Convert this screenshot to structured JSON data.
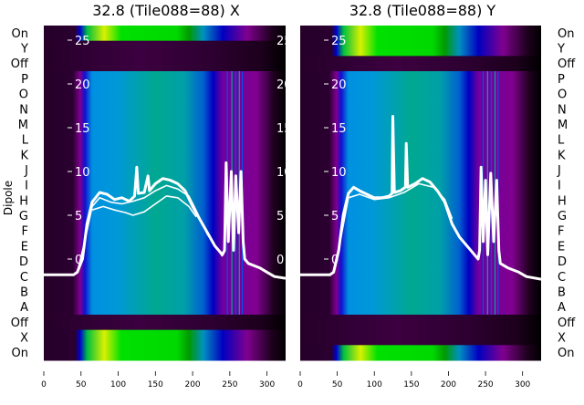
{
  "chart_data": [
    {
      "type": "heatmap",
      "title": "32.8 (Tile088=88) X",
      "ylabel": "Dipole",
      "row_labels": [
        "On",
        "Y",
        "Off",
        "P",
        "O",
        "N",
        "M",
        "L",
        "K",
        "J",
        "I",
        "H",
        "G",
        "F",
        "E",
        "D",
        "C",
        "B",
        "A",
        "Off",
        "X",
        "On"
      ],
      "row_types": [
        "on",
        "off",
        "off",
        "dip",
        "dip",
        "dip",
        "dip",
        "dip",
        "dip",
        "dip",
        "dip",
        "dip",
        "dip",
        "dip",
        "dip",
        "dip",
        "dip",
        "dip",
        "dip",
        "off",
        "on",
        "on"
      ],
      "x_range": [
        0,
        325
      ],
      "x_ticks": [
        "0",
        "50",
        "100",
        "150",
        "200",
        "250",
        "300"
      ],
      "y2_range": [
        -5,
        27
      ],
      "y2_ticks": [
        "0",
        "5",
        "10",
        "15",
        "20",
        "25"
      ],
      "lines": [
        [
          [
            0,
            -1.8
          ],
          [
            40,
            -1.8
          ],
          [
            45,
            -1.5
          ],
          [
            52,
            0
          ],
          [
            58,
            4
          ],
          [
            65,
            6.5
          ],
          [
            75,
            7.6
          ],
          [
            85,
            7.4
          ],
          [
            95,
            6.8
          ],
          [
            105,
            7.0
          ],
          [
            115,
            6.6
          ],
          [
            122,
            7.2
          ],
          [
            125,
            10.5
          ],
          [
            127,
            7.5
          ],
          [
            135,
            7.6
          ],
          [
            140,
            9.5
          ],
          [
            142,
            7.8
          ],
          [
            150,
            8.6
          ],
          [
            160,
            9.2
          ],
          [
            170,
            9.0
          ],
          [
            180,
            8.6
          ],
          [
            190,
            7.8
          ],
          [
            200,
            6
          ],
          [
            210,
            4.5
          ],
          [
            220,
            3
          ],
          [
            230,
            1.5
          ],
          [
            240,
            0.5
          ],
          [
            243,
            1
          ],
          [
            245,
            11
          ],
          [
            248,
            2
          ],
          [
            252,
            10
          ],
          [
            255,
            1
          ],
          [
            258,
            9.5
          ],
          [
            262,
            3
          ],
          [
            265,
            10
          ],
          [
            268,
            2
          ],
          [
            270,
            0
          ],
          [
            275,
            -0.5
          ],
          [
            290,
            -1
          ],
          [
            300,
            -1.5
          ],
          [
            310,
            -2
          ],
          [
            325,
            -2.2
          ]
        ],
        [
          [
            45,
            -1.5
          ],
          [
            55,
            2
          ],
          [
            65,
            6
          ],
          [
            75,
            7.0
          ],
          [
            90,
            6.5
          ],
          [
            105,
            6.3
          ],
          [
            120,
            6.6
          ],
          [
            135,
            7.0
          ],
          [
            150,
            7.8
          ],
          [
            165,
            8.4
          ],
          [
            180,
            8.0
          ],
          [
            195,
            7.2
          ],
          [
            205,
            5.5
          ],
          [
            220,
            2.8
          ],
          [
            240,
            0.3
          ]
        ],
        [
          [
            65,
            5.6
          ],
          [
            80,
            6.0
          ],
          [
            95,
            5.6
          ],
          [
            110,
            5.3
          ],
          [
            120,
            5.0
          ],
          [
            135,
            5.4
          ],
          [
            150,
            6.3
          ],
          [
            165,
            7.2
          ],
          [
            180,
            7.0
          ],
          [
            195,
            6.0
          ],
          [
            205,
            4.8
          ]
        ]
      ]
    },
    {
      "type": "heatmap",
      "title": "32.8 (Tile088=88) Y",
      "row_labels": [
        "On",
        "Y",
        "Off",
        "P",
        "O",
        "N",
        "M",
        "L",
        "K",
        "J",
        "I",
        "H",
        "G",
        "F",
        "E",
        "D",
        "C",
        "B",
        "A",
        "Off",
        "X",
        "On"
      ],
      "row_types": [
        "on",
        "on",
        "off",
        "dip",
        "dip",
        "dip",
        "dip",
        "dip",
        "dip",
        "dip",
        "dip",
        "dip",
        "dip",
        "dip",
        "dip",
        "dip",
        "dip",
        "dip",
        "dip",
        "off",
        "off",
        "on"
      ],
      "x_range": [
        0,
        325
      ],
      "x_ticks": [
        "0",
        "50",
        "100",
        "150",
        "200",
        "250",
        "300"
      ],
      "y2_range": [
        -5,
        27
      ],
      "y2_ticks": [
        "0",
        "5",
        "10",
        "15",
        "20",
        "25"
      ],
      "lines": [
        [
          [
            0,
            -1.8
          ],
          [
            40,
            -1.8
          ],
          [
            45,
            -1.5
          ],
          [
            52,
            1
          ],
          [
            58,
            5
          ],
          [
            65,
            7.5
          ],
          [
            72,
            8.2
          ],
          [
            80,
            7.8
          ],
          [
            90,
            7.4
          ],
          [
            100,
            7.0
          ],
          [
            110,
            7.0
          ],
          [
            120,
            7.2
          ],
          [
            124,
            7.5
          ],
          [
            125,
            16.3
          ],
          [
            127,
            7.6
          ],
          [
            135,
            7.8
          ],
          [
            142,
            8.2
          ],
          [
            143,
            13.2
          ],
          [
            145,
            8.2
          ],
          [
            155,
            8.6
          ],
          [
            165,
            9.2
          ],
          [
            175,
            8.8
          ],
          [
            185,
            7.8
          ],
          [
            195,
            6.5
          ],
          [
            205,
            4
          ],
          [
            215,
            2.5
          ],
          [
            225,
            1.5
          ],
          [
            235,
            0.5
          ],
          [
            240,
            0
          ],
          [
            242,
            1
          ],
          [
            244,
            10.5
          ],
          [
            247,
            2
          ],
          [
            250,
            9
          ],
          [
            253,
            0.5
          ],
          [
            257,
            9.8
          ],
          [
            261,
            2
          ],
          [
            265,
            9
          ],
          [
            268,
            1
          ],
          [
            270,
            -0.5
          ],
          [
            280,
            -1
          ],
          [
            295,
            -1.5
          ],
          [
            305,
            -2
          ],
          [
            325,
            -2.3
          ]
        ],
        [
          [
            55,
            2.5
          ],
          [
            65,
            7.0
          ],
          [
            80,
            7.4
          ],
          [
            100,
            6.8
          ],
          [
            120,
            7.0
          ],
          [
            140,
            7.6
          ],
          [
            160,
            8.6
          ],
          [
            180,
            8.2
          ],
          [
            195,
            6.8
          ],
          [
            205,
            4.6
          ]
        ]
      ]
    }
  ]
}
